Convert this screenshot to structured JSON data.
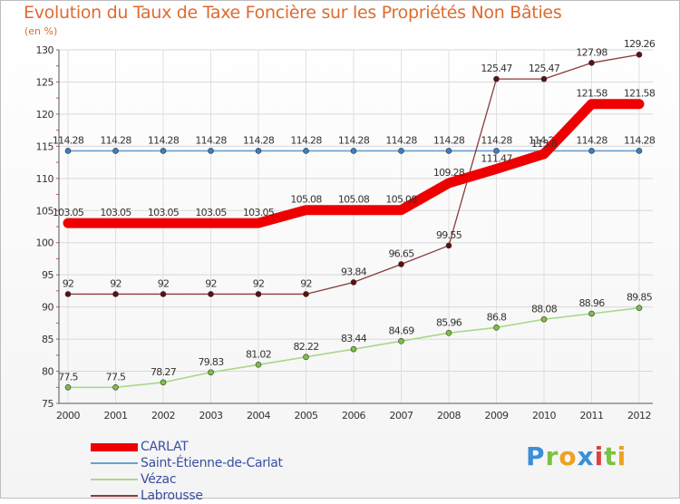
{
  "chart_data": {
    "type": "line",
    "title": "Evolution du Taux de Taxe Foncière sur les Propriétés Non Bâties",
    "unit": "(en %)",
    "x": [
      2000,
      2001,
      2002,
      2003,
      2004,
      2005,
      2006,
      2007,
      2008,
      2009,
      2010,
      2011,
      2012
    ],
    "ylim": [
      75,
      130
    ],
    "yticks": [
      75,
      80,
      85,
      90,
      95,
      100,
      105,
      110,
      115,
      120,
      125,
      130
    ],
    "series": [
      {
        "name": "Saint-Étienne-de-Carlat",
        "color": "#6a9fd0",
        "marker": "#3a7fc0",
        "values": [
          114.28,
          114.28,
          114.28,
          114.28,
          114.28,
          114.28,
          114.28,
          114.28,
          114.28,
          114.28,
          114.28,
          114.28,
          114.28
        ],
        "labels": [
          "114.28",
          "114.28",
          "114.28",
          "114.28",
          "114.28",
          "114.28",
          "114.28",
          "114.28",
          "114.28",
          "114.28",
          "114.28",
          "114.28",
          "114.28"
        ]
      },
      {
        "name": "Vézac",
        "color": "#a8d88a",
        "marker": "#7cc142",
        "values": [
          77.5,
          77.5,
          78.27,
          79.83,
          81.02,
          82.22,
          83.44,
          84.69,
          85.96,
          86.8,
          88.08,
          88.96,
          89.85
        ],
        "labels": [
          "77.5",
          "77.5",
          "78.27",
          "79.83",
          "81.02",
          "82.22",
          "83.44",
          "84.69",
          "85.96",
          "86.8",
          "88.08",
          "88.96",
          "89.85"
        ]
      },
      {
        "name": "Labrousse",
        "color": "#8b3a3a",
        "marker": "#5c1010",
        "values": [
          92,
          92,
          92,
          92,
          92,
          92,
          93.84,
          96.65,
          99.55,
          125.47,
          125.47,
          127.98,
          129.26
        ],
        "labels": [
          "92",
          "92",
          "92",
          "92",
          "92",
          "92",
          "93.84",
          "96.65",
          "99.55",
          "125.47",
          "125.47",
          "127.98",
          "129.26"
        ]
      },
      {
        "name": "CARLAT",
        "color": "#ee0000",
        "marker": "#ee0000",
        "values": [
          103.05,
          103.05,
          103.05,
          103.05,
          103.05,
          105.08,
          105.08,
          105.08,
          109.28,
          111.47,
          113.8,
          121.58,
          121.58
        ],
        "labels": [
          "103.05",
          "103.05",
          "103.05",
          "103.05",
          "103.05",
          "105.08",
          "105.08",
          "105.08",
          "109.28",
          "111.47",
          "113.8",
          "121.58",
          "121.58"
        ]
      }
    ],
    "legend": [
      "CARLAT",
      "Saint-Étienne-de-Carlat",
      "Vézac",
      "Labrousse"
    ]
  },
  "logo": {
    "letters": [
      "P",
      "r",
      "o",
      "x",
      "i",
      "t",
      "i"
    ],
    "colors": [
      "#3a8fd8",
      "#7cc142",
      "#f0a020",
      "#3a8fd8",
      "#e04040",
      "#7cc142",
      "#f0a020"
    ]
  }
}
